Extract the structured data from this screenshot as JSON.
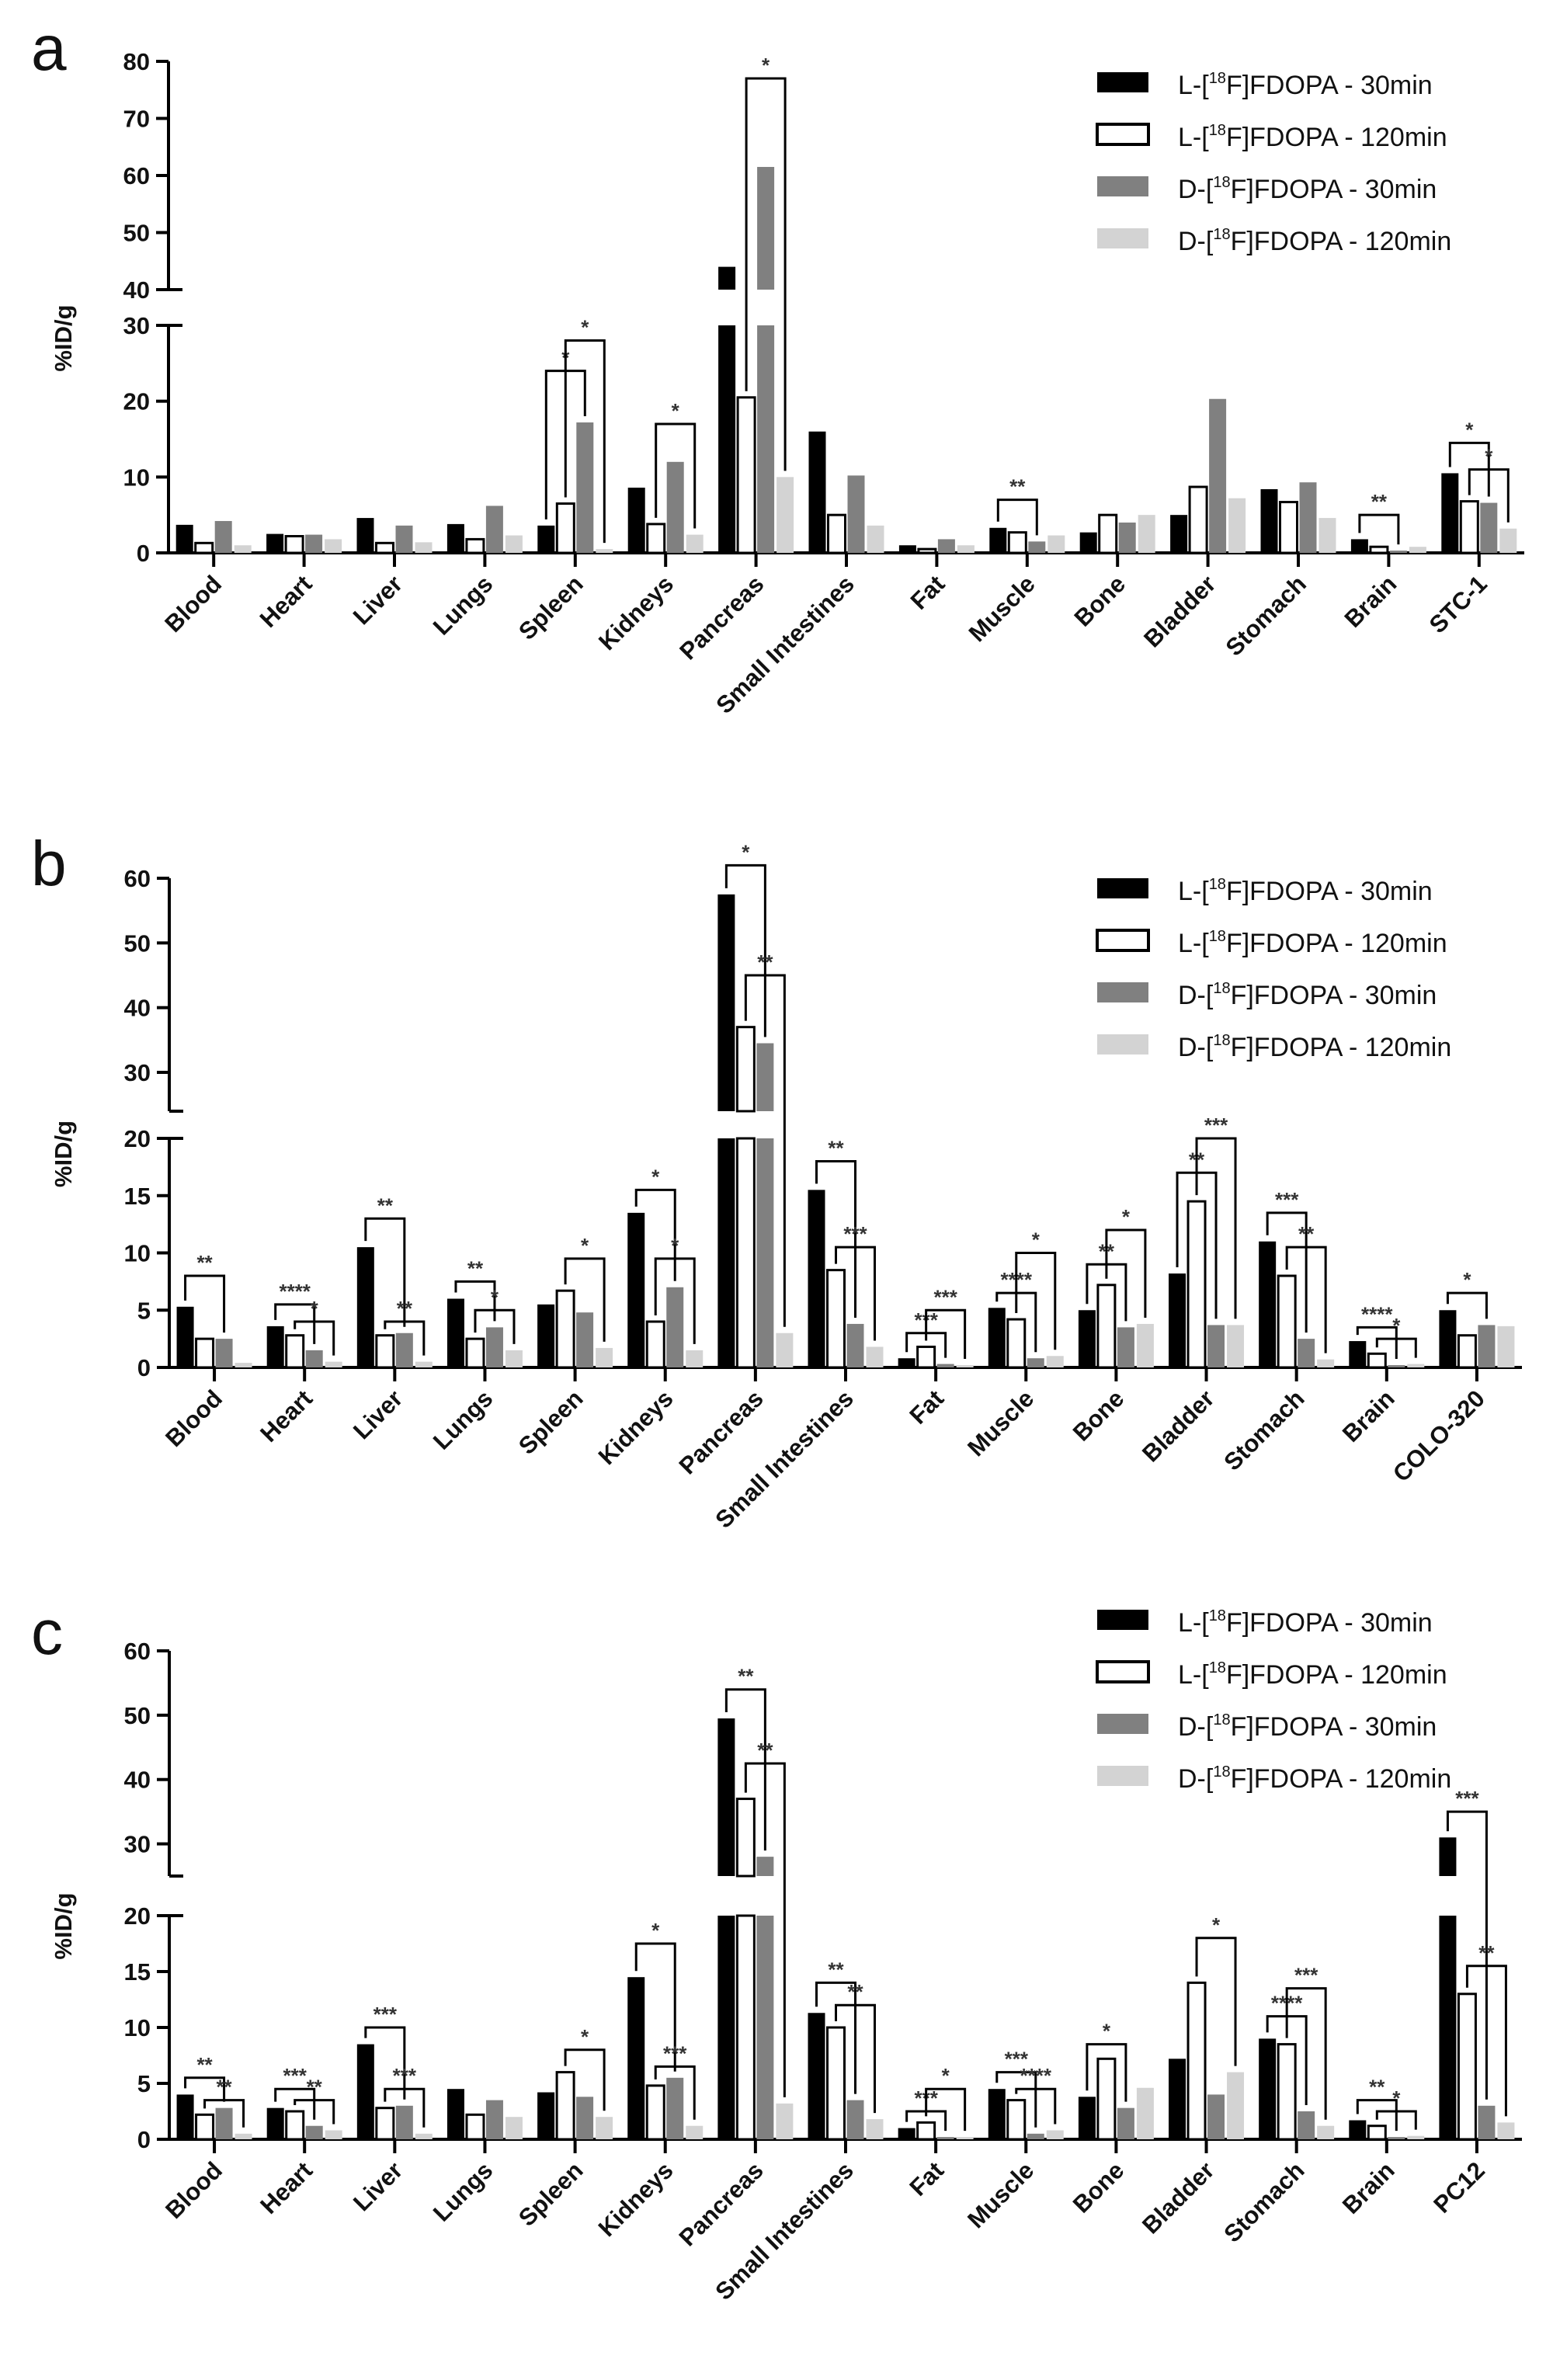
{
  "series_names": [
    "L-[18F]FDOPA - 30min",
    "L-[18F]FDOPA - 120min",
    "D-[18F]FDOPA - 30min",
    "D-[18F]FDOPA - 120min"
  ],
  "series_colors": [
    "#000000",
    "#ffffff",
    "#808080",
    "#d3d3d3"
  ],
  "chart_data": [
    {
      "type": "bar",
      "panel_label": "a",
      "ylabel": "%ID/g",
      "y_axis": {
        "broken": true,
        "lower_range": [
          0,
          30
        ],
        "upper_range": [
          40,
          80
        ],
        "lower_ticks": [
          0,
          10,
          20,
          30
        ],
        "upper_ticks": [
          40,
          50,
          60,
          70,
          80
        ]
      },
      "legend": "top-right",
      "categories": [
        "Blood",
        "Heart",
        "Liver",
        "Lungs",
        "Spleen",
        "Kidneys",
        "Pancreas",
        "Small Intestines",
        "Fat",
        "Muscle",
        "Bone",
        "Bladder",
        "Stomach",
        "Brain",
        "STC-1"
      ],
      "series": [
        {
          "name": "L-[18F]FDOPA - 30min",
          "values": [
            3.7,
            2.5,
            4.6,
            3.8,
            3.6,
            8.6,
            44,
            16,
            1.0,
            3.3,
            2.7,
            5.0,
            8.4,
            1.8,
            10.5
          ]
        },
        {
          "name": "L-[18F]FDOPA - 120min",
          "values": [
            1.3,
            2.2,
            1.3,
            1.8,
            6.5,
            3.8,
            20.5,
            5.0,
            0.5,
            2.7,
            5.0,
            8.7,
            6.7,
            0.8,
            6.8
          ]
        },
        {
          "name": "D-[18F]FDOPA - 30min",
          "values": [
            4.2,
            2.4,
            3.6,
            6.2,
            17.2,
            12.0,
            61.5,
            10.2,
            1.8,
            1.5,
            4.0,
            20.3,
            9.3,
            0.3,
            6.6
          ]
        },
        {
          "name": "D-[18F]FDOPA - 120min",
          "values": [
            1.0,
            1.8,
            1.4,
            2.3,
            0.5,
            2.4,
            10.0,
            3.6,
            1.0,
            2.3,
            5.0,
            7.2,
            4.6,
            0.8,
            3.2
          ]
        }
      ],
      "significance": [
        {
          "category": "Spleen",
          "from": 0,
          "to": 2,
          "at": 24,
          "label": "*"
        },
        {
          "category": "Spleen",
          "from": 1,
          "to": 3,
          "at": 28,
          "label": "*"
        },
        {
          "category": "Kidneys",
          "from": 1,
          "to": 3,
          "at": 17,
          "label": "*"
        },
        {
          "category": "Pancreas",
          "from": 1,
          "to": 3,
          "at": 77,
          "label": "*"
        },
        {
          "category": "Muscle",
          "from": 0,
          "to": 2,
          "at": 7,
          "label": "**"
        },
        {
          "category": "Brain",
          "from": 0,
          "to": 2,
          "at": 5,
          "label": "**"
        },
        {
          "category": "STC-1",
          "from": 0,
          "to": 2,
          "at": 14.5,
          "label": "*"
        },
        {
          "category": "STC-1",
          "from": 1,
          "to": 3,
          "at": 11,
          "label": "*"
        }
      ]
    },
    {
      "type": "bar",
      "panel_label": "b",
      "ylabel": "%ID/g",
      "y_axis": {
        "broken": true,
        "lower_range": [
          0,
          20
        ],
        "upper_range": [
          24,
          60
        ],
        "lower_ticks": [
          0,
          5,
          10,
          15,
          20
        ],
        "upper_ticks": [
          30,
          40,
          50,
          60
        ]
      },
      "legend": "top-right",
      "categories": [
        "Blood",
        "Heart",
        "Liver",
        "Lungs",
        "Spleen",
        "Kidneys",
        "Pancreas",
        "Small Intestines",
        "Fat",
        "Muscle",
        "Bone",
        "Bladder",
        "Stomach",
        "Brain",
        "COLO-320"
      ],
      "series": [
        {
          "name": "L-[18F]FDOPA - 30min",
          "values": [
            5.3,
            3.6,
            10.5,
            6.0,
            5.5,
            13.5,
            57.5,
            15.5,
            0.8,
            5.2,
            5.0,
            8.2,
            11.0,
            2.3,
            5.0
          ]
        },
        {
          "name": "L-[18F]FDOPA - 120min",
          "values": [
            2.5,
            2.8,
            2.8,
            2.5,
            6.7,
            4.0,
            37,
            8.5,
            1.8,
            4.2,
            7.2,
            14.5,
            8.0,
            1.2,
            2.8
          ]
        },
        {
          "name": "D-[18F]FDOPA - 30min",
          "values": [
            2.5,
            1.5,
            3.0,
            3.5,
            4.8,
            7.0,
            34.5,
            3.8,
            0.3,
            0.8,
            3.5,
            3.7,
            2.5,
            0.2,
            3.7
          ]
        },
        {
          "name": "D-[18F]FDOPA - 120min",
          "values": [
            0.4,
            0.5,
            0.5,
            1.5,
            1.7,
            1.5,
            3.0,
            1.8,
            0.2,
            1.0,
            3.8,
            3.7,
            0.7,
            0.3,
            3.6
          ]
        }
      ],
      "significance": [
        {
          "category": "Blood",
          "from": 0,
          "to": 2,
          "at": 8,
          "label": "**"
        },
        {
          "category": "Heart",
          "from": 0,
          "to": 2,
          "at": 5.5,
          "label": "****"
        },
        {
          "category": "Heart",
          "from": 1,
          "to": 3,
          "at": 4,
          "label": "*"
        },
        {
          "category": "Liver",
          "from": 0,
          "to": 2,
          "at": 13,
          "label": "**"
        },
        {
          "category": "Liver",
          "from": 1,
          "to": 3,
          "at": 4,
          "label": "**"
        },
        {
          "category": "Lungs",
          "from": 0,
          "to": 2,
          "at": 7.5,
          "label": "**"
        },
        {
          "category": "Lungs",
          "from": 1,
          "to": 3,
          "at": 5,
          "label": "*"
        },
        {
          "category": "Spleen",
          "from": 1,
          "to": 3,
          "at": 9.5,
          "label": "*"
        },
        {
          "category": "Kidneys",
          "from": 0,
          "to": 2,
          "at": 15.5,
          "label": "*"
        },
        {
          "category": "Kidneys",
          "from": 1,
          "to": 3,
          "at": 9.5,
          "label": "*"
        },
        {
          "category": "Pancreas",
          "from": 0,
          "to": 2,
          "at": 62,
          "label": "*"
        },
        {
          "category": "Pancreas",
          "from": 1,
          "to": 3,
          "at": 45,
          "label": "**"
        },
        {
          "category": "Small Intestines",
          "from": 0,
          "to": 2,
          "at": 18,
          "label": "**"
        },
        {
          "category": "Small Intestines",
          "from": 1,
          "to": 3,
          "at": 10.5,
          "label": "***"
        },
        {
          "category": "Fat",
          "from": 0,
          "to": 2,
          "at": 3,
          "label": "***"
        },
        {
          "category": "Fat",
          "from": 1,
          "to": 3,
          "at": 5,
          "label": "***"
        },
        {
          "category": "Muscle",
          "from": 0,
          "to": 2,
          "at": 6.5,
          "label": "****"
        },
        {
          "category": "Muscle",
          "from": 1,
          "to": 3,
          "at": 10,
          "label": "*"
        },
        {
          "category": "Bone",
          "from": 0,
          "to": 2,
          "at": 9,
          "label": "**"
        },
        {
          "category": "Bone",
          "from": 1,
          "to": 3,
          "at": 12,
          "label": "*"
        },
        {
          "category": "Bladder",
          "from": 0,
          "to": 2,
          "at": 17,
          "label": "**"
        },
        {
          "category": "Bladder",
          "from": 1,
          "to": 3,
          "at": 20,
          "label": "***"
        },
        {
          "category": "Stomach",
          "from": 0,
          "to": 2,
          "at": 13.5,
          "label": "***"
        },
        {
          "category": "Stomach",
          "from": 1,
          "to": 3,
          "at": 10.5,
          "label": "**"
        },
        {
          "category": "Brain",
          "from": 0,
          "to": 2,
          "at": 3.5,
          "label": "****"
        },
        {
          "category": "Brain",
          "from": 1,
          "to": 3,
          "at": 2.5,
          "label": "*"
        },
        {
          "category": "COLO-320",
          "from": 0,
          "to": 2,
          "at": 6.5,
          "label": "*"
        }
      ]
    },
    {
      "type": "bar",
      "panel_label": "c",
      "ylabel": "%ID/g",
      "y_axis": {
        "broken": true,
        "lower_range": [
          0,
          20
        ],
        "upper_range": [
          25,
          60
        ],
        "lower_ticks": [
          0,
          5,
          10,
          15,
          20
        ],
        "upper_ticks": [
          30,
          40,
          50,
          60
        ]
      },
      "legend": "top-right",
      "categories": [
        "Blood",
        "Heart",
        "Liver",
        "Lungs",
        "Spleen",
        "Kidneys",
        "Pancreas",
        "Small Intestines",
        "Fat",
        "Muscle",
        "Bone",
        "Bladder",
        "Stomach",
        "Brain",
        "PC12"
      ],
      "series": [
        {
          "name": "L-[18F]FDOPA - 30min",
          "values": [
            4.0,
            2.8,
            8.5,
            4.5,
            4.2,
            14.5,
            49.5,
            11.3,
            1.0,
            4.5,
            3.8,
            7.2,
            9.0,
            1.7,
            31
          ]
        },
        {
          "name": "L-[18F]FDOPA - 120min",
          "values": [
            2.2,
            2.5,
            2.8,
            2.2,
            6.0,
            4.8,
            37,
            10.0,
            1.5,
            3.5,
            7.2,
            14.0,
            8.5,
            1.2,
            13
          ]
        },
        {
          "name": "D-[18F]FDOPA - 30min",
          "values": [
            2.8,
            1.2,
            3.0,
            3.5,
            3.8,
            5.5,
            28,
            3.5,
            0.2,
            0.5,
            2.8,
            4.0,
            2.5,
            0.2,
            3.0
          ]
        },
        {
          "name": "D-[18F]FDOPA - 120min",
          "values": [
            0.5,
            0.8,
            0.5,
            2.0,
            2.0,
            1.2,
            3.2,
            1.8,
            0.2,
            0.8,
            4.6,
            6.0,
            1.2,
            0.3,
            1.5
          ]
        }
      ],
      "significance": [
        {
          "category": "Blood",
          "from": 0,
          "to": 2,
          "at": 5.5,
          "label": "**"
        },
        {
          "category": "Blood",
          "from": 1,
          "to": 3,
          "at": 3.5,
          "label": "**"
        },
        {
          "category": "Heart",
          "from": 0,
          "to": 2,
          "at": 4.5,
          "label": "***"
        },
        {
          "category": "Heart",
          "from": 1,
          "to": 3,
          "at": 3.5,
          "label": "**"
        },
        {
          "category": "Liver",
          "from": 0,
          "to": 2,
          "at": 10,
          "label": "***"
        },
        {
          "category": "Liver",
          "from": 1,
          "to": 3,
          "at": 4.5,
          "label": "***"
        },
        {
          "category": "Spleen",
          "from": 1,
          "to": 3,
          "at": 8,
          "label": "*"
        },
        {
          "category": "Kidneys",
          "from": 0,
          "to": 2,
          "at": 17.5,
          "label": "*"
        },
        {
          "category": "Kidneys",
          "from": 1,
          "to": 3,
          "at": 6.5,
          "label": "***"
        },
        {
          "category": "Pancreas",
          "from": 0,
          "to": 2,
          "at": 54,
          "label": "**"
        },
        {
          "category": "Pancreas",
          "from": 1,
          "to": 3,
          "at": 42.5,
          "label": "**"
        },
        {
          "category": "Small Intestines",
          "from": 0,
          "to": 2,
          "at": 14,
          "label": "**"
        },
        {
          "category": "Small Intestines",
          "from": 1,
          "to": 3,
          "at": 12,
          "label": "**"
        },
        {
          "category": "Fat",
          "from": 0,
          "to": 2,
          "at": 2.5,
          "label": "***"
        },
        {
          "category": "Fat",
          "from": 1,
          "to": 3,
          "at": 4.5,
          "label": "*"
        },
        {
          "category": "Muscle",
          "from": 0,
          "to": 2,
          "at": 6,
          "label": "***"
        },
        {
          "category": "Muscle",
          "from": 1,
          "to": 3,
          "at": 4.5,
          "label": "****"
        },
        {
          "category": "Bone",
          "from": 0,
          "to": 2,
          "at": 8.5,
          "label": "*"
        },
        {
          "category": "Bladder",
          "from": 1,
          "to": 3,
          "at": 18,
          "label": "*"
        },
        {
          "category": "Stomach",
          "from": 0,
          "to": 2,
          "at": 11,
          "label": "****"
        },
        {
          "category": "Stomach",
          "from": 1,
          "to": 3,
          "at": 13.5,
          "label": "***"
        },
        {
          "category": "Brain",
          "from": 0,
          "to": 2,
          "at": 3.5,
          "label": "**"
        },
        {
          "category": "Brain",
          "from": 1,
          "to": 3,
          "at": 2.5,
          "label": "*"
        },
        {
          "category": "PC12",
          "from": 0,
          "to": 2,
          "at": 35,
          "label": "***"
        },
        {
          "category": "PC12",
          "from": 1,
          "to": 3,
          "at": 15.5,
          "label": "**"
        }
      ]
    }
  ]
}
